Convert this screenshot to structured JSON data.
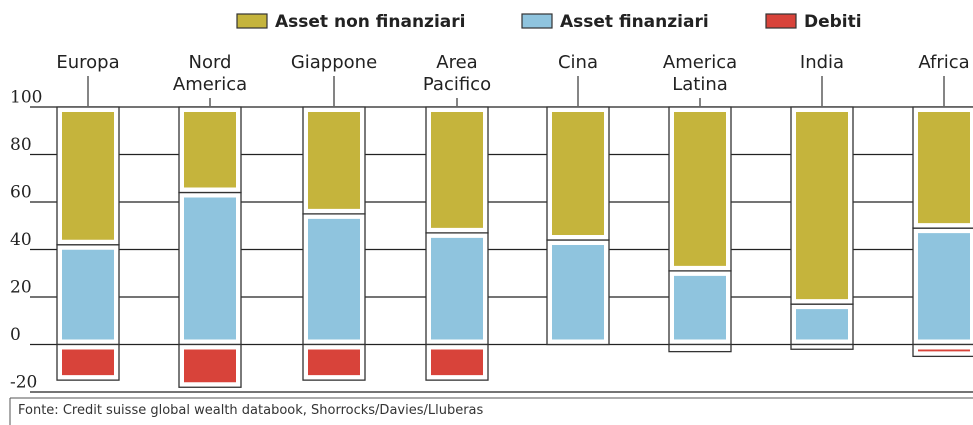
{
  "chart_data": {
    "type": "stacked_bar",
    "categories": [
      "Europa",
      "Nord America",
      "Giappone",
      "Area Pacifico",
      "Cina",
      "America Latina",
      "India",
      "Africa"
    ],
    "series": [
      {
        "name": "Asset non finanziari",
        "color": "#c5b43c",
        "values": [
          58,
          36,
          45,
          53,
          56,
          69,
          83,
          51
        ]
      },
      {
        "name": "Asset finanziari",
        "color": "#8fc4de",
        "values": [
          42,
          64,
          55,
          47,
          44,
          31,
          17,
          49
        ]
      },
      {
        "name": "Debiti",
        "color": "#d8433a",
        "values": [
          -15,
          -18,
          -15,
          -15,
          0,
          -3,
          -2,
          -5
        ]
      }
    ],
    "ylim": [
      -20,
      100
    ],
    "yticks": [
      -20,
      0,
      20,
      40,
      60,
      80,
      100
    ],
    "grid": true,
    "source": "Fonte: Credit suisse global wealth databook, Shorrocks/Davies/Lluberas"
  }
}
